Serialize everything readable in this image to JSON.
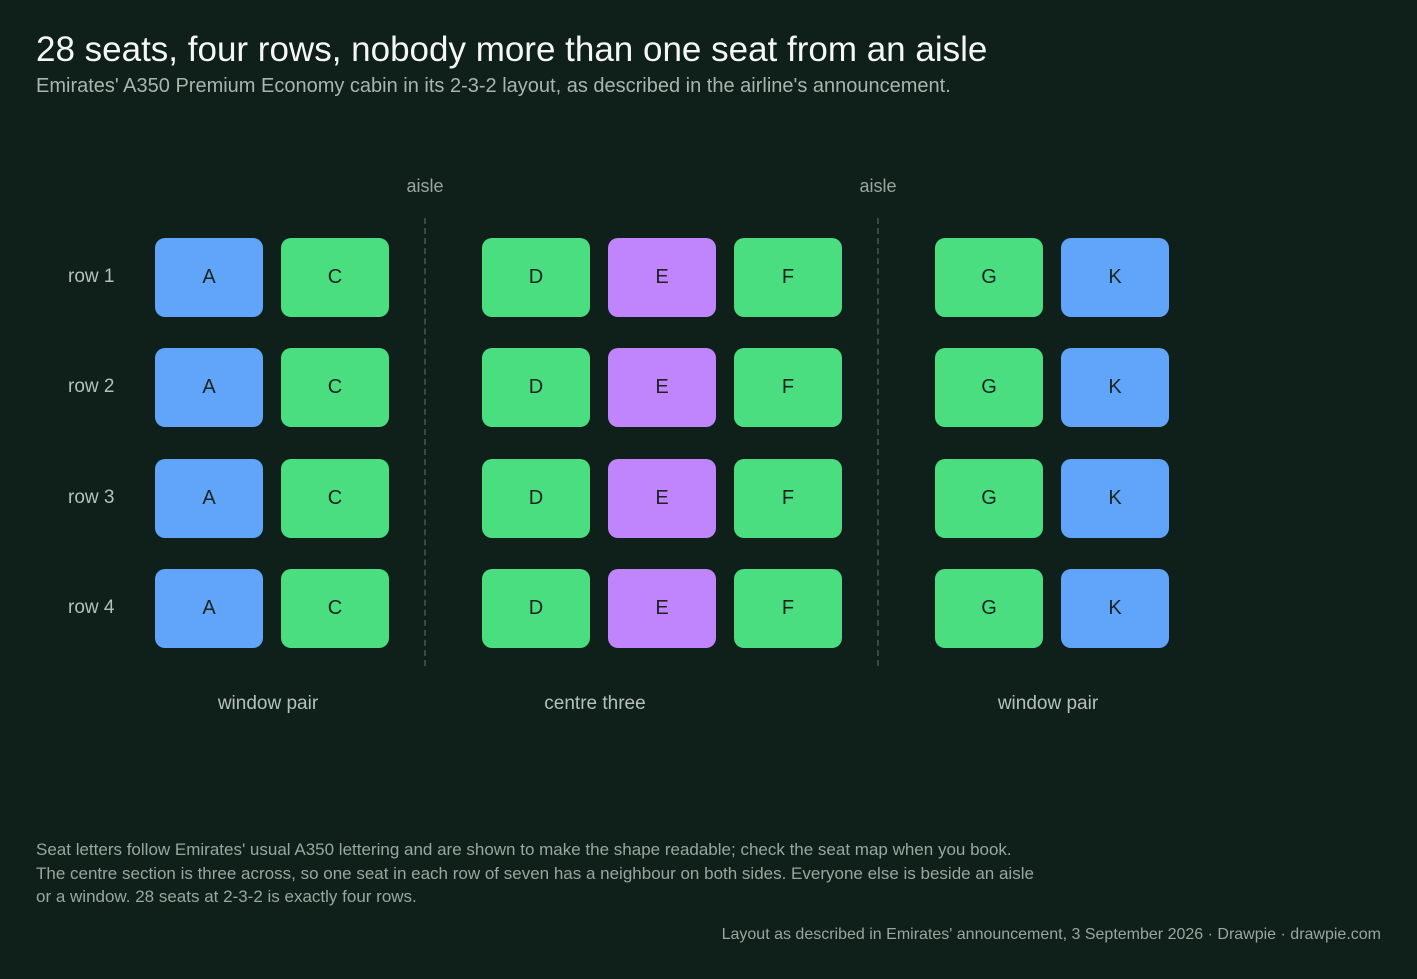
{
  "title": "28 seats, four rows, nobody more than one seat from an aisle",
  "subtitle": "Emirates' A350 Premium Economy cabin in its 2-3-2 layout, as described in the airline's announcement.",
  "colors": {
    "background": "#0f1f1a",
    "window_seat": "#60a5fa",
    "aisle_seat": "#4ade80",
    "middle_seat": "#c084fc"
  },
  "aisles": [
    "aisle",
    "aisle"
  ],
  "rows": [
    "row 1",
    "row 2",
    "row 3",
    "row 4"
  ],
  "seat_letters": [
    "A",
    "C",
    "D",
    "E",
    "F",
    "G",
    "K"
  ],
  "seat_types": [
    "window",
    "aisle",
    "aisle",
    "middle",
    "aisle",
    "aisle",
    "window"
  ],
  "sections": [
    "window pair",
    "centre three",
    "window pair"
  ],
  "notes": [
    "Seat letters follow Emirates' usual A350 lettering and are shown to make the shape readable; check the seat map when you book.",
    "The centre section is three across, so one seat in each row of seven has a neighbour on both sides. Everyone else is beside an aisle",
    "or a window. 28 seats at 2-3-2 is exactly four rows."
  ],
  "source": "Layout as described in Emirates' announcement, 3 September 2026  ·  Drawpie · drawpie.com"
}
